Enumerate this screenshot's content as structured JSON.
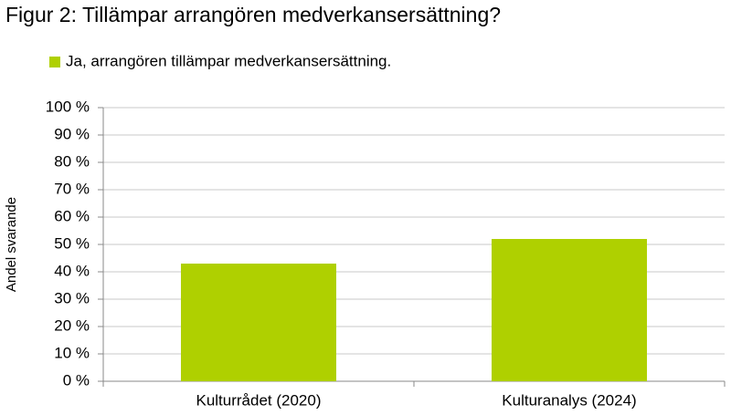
{
  "chart_data": {
    "type": "bar",
    "title": "Figur 2: Tillämpar arrangören medverkansersättning?",
    "y_label": "Andel svarande",
    "categories": [
      "Kulturrådet (2020)",
      "Kulturanalys (2024)"
    ],
    "series": [
      {
        "name": "Ja, arrangören tillämpar medverkansersättning.",
        "color": "#afd000",
        "values": [
          43,
          52
        ]
      }
    ],
    "ylim": [
      0,
      100
    ],
    "yticks": [
      {
        "value": 0,
        "label": "0 %"
      },
      {
        "value": 10,
        "label": "10 %"
      },
      {
        "value": 20,
        "label": "20 %"
      },
      {
        "value": 30,
        "label": "30 %"
      },
      {
        "value": 40,
        "label": "40 %"
      },
      {
        "value": 50,
        "label": "50 %"
      },
      {
        "value": 60,
        "label": "60 %"
      },
      {
        "value": 70,
        "label": "70 %"
      },
      {
        "value": 80,
        "label": "80 %"
      },
      {
        "value": 90,
        "label": "90 %"
      },
      {
        "value": 100,
        "label": "100 %"
      }
    ],
    "grid": true,
    "legend": "top-left"
  }
}
